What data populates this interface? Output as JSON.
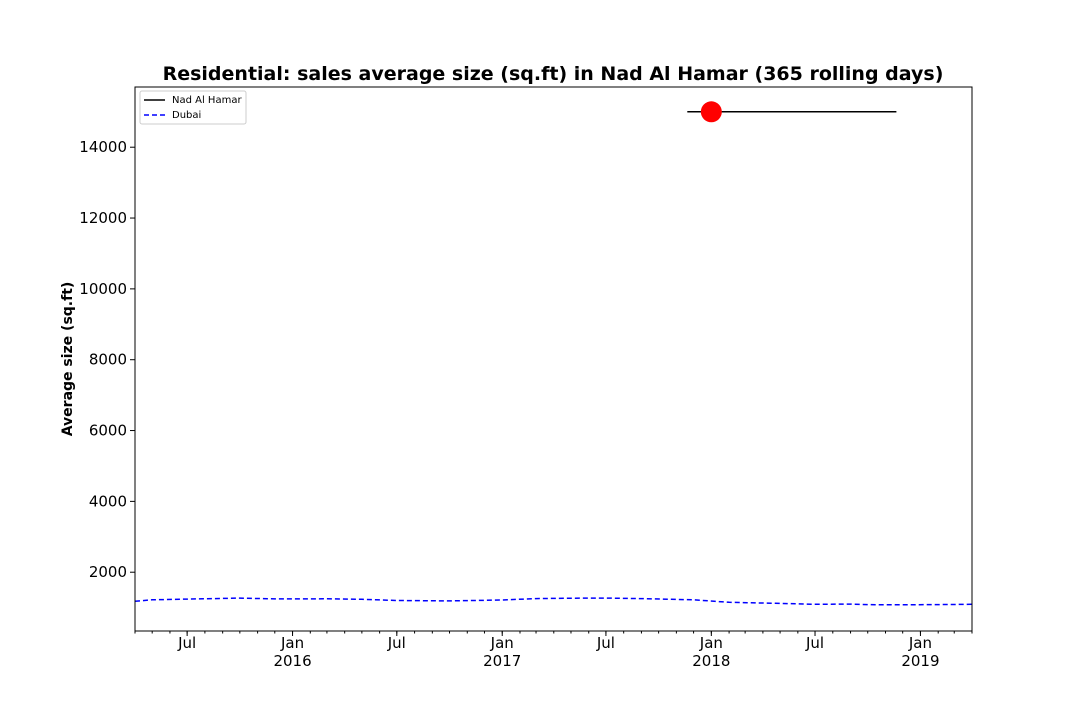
{
  "chart_data": {
    "type": "line",
    "title": "Residential: sales average size (sq.ft) in Nad Al Hamar (365 rolling days)",
    "xlabel": "",
    "ylabel": "Average size (sq.ft)",
    "xlim": [
      "2015-04-01",
      "2019-04-01"
    ],
    "ylim": [
      340,
      15700
    ],
    "yticks": [
      {
        "value": 2000,
        "label": "2000"
      },
      {
        "value": 4000,
        "label": "4000"
      },
      {
        "value": 6000,
        "label": "6000"
      },
      {
        "value": 8000,
        "label": "8000"
      },
      {
        "value": 10000,
        "label": "10000"
      },
      {
        "value": 12000,
        "label": "12000"
      },
      {
        "value": 14000,
        "label": "14000"
      }
    ],
    "xticks": [
      {
        "date": "2015-07-01",
        "label": "Jul",
        "sublabel": ""
      },
      {
        "date": "2016-01-01",
        "label": "Jan",
        "sublabel": "2016"
      },
      {
        "date": "2016-07-01",
        "label": "Jul",
        "sublabel": ""
      },
      {
        "date": "2017-01-01",
        "label": "Jan",
        "sublabel": "2017"
      },
      {
        "date": "2017-07-01",
        "label": "Jul",
        "sublabel": ""
      },
      {
        "date": "2018-01-01",
        "label": "Jan",
        "sublabel": "2018"
      },
      {
        "date": "2018-07-01",
        "label": "Jul",
        "sublabel": ""
      },
      {
        "date": "2019-01-01",
        "label": "Jan",
        "sublabel": "2019"
      }
    ],
    "grid": false,
    "legend": "top-left",
    "series": [
      {
        "name": "Nad Al Hamar",
        "color": "#000000",
        "style": "solid",
        "points": [
          {
            "x": "2017-11-20",
            "y": 15000
          },
          {
            "x": "2018-11-20",
            "y": 15000
          }
        ]
      },
      {
        "name": "Dubai",
        "color": "#0000ff",
        "style": "dashed",
        "points": [
          {
            "x": "2015-04-01",
            "y": 1180
          },
          {
            "x": "2015-05-01",
            "y": 1220
          },
          {
            "x": "2015-07-01",
            "y": 1240
          },
          {
            "x": "2015-10-01",
            "y": 1270
          },
          {
            "x": "2015-12-01",
            "y": 1245
          },
          {
            "x": "2016-03-01",
            "y": 1250
          },
          {
            "x": "2016-05-01",
            "y": 1235
          },
          {
            "x": "2016-07-01",
            "y": 1200
          },
          {
            "x": "2016-10-01",
            "y": 1190
          },
          {
            "x": "2017-01-01",
            "y": 1215
          },
          {
            "x": "2017-03-01",
            "y": 1255
          },
          {
            "x": "2017-05-01",
            "y": 1265
          },
          {
            "x": "2017-07-01",
            "y": 1270
          },
          {
            "x": "2017-09-01",
            "y": 1255
          },
          {
            "x": "2017-12-01",
            "y": 1220
          },
          {
            "x": "2018-02-01",
            "y": 1150
          },
          {
            "x": "2018-05-01",
            "y": 1120
          },
          {
            "x": "2018-07-01",
            "y": 1095
          },
          {
            "x": "2018-09-01",
            "y": 1100
          },
          {
            "x": "2018-10-15",
            "y": 1080
          },
          {
            "x": "2018-12-01",
            "y": 1080
          },
          {
            "x": "2019-02-01",
            "y": 1085
          },
          {
            "x": "2019-04-01",
            "y": 1095
          }
        ]
      }
    ],
    "markers": [
      {
        "series": "Nad Al Hamar",
        "x": "2018-01-01",
        "y": 15000,
        "color": "#ff0000"
      }
    ]
  }
}
